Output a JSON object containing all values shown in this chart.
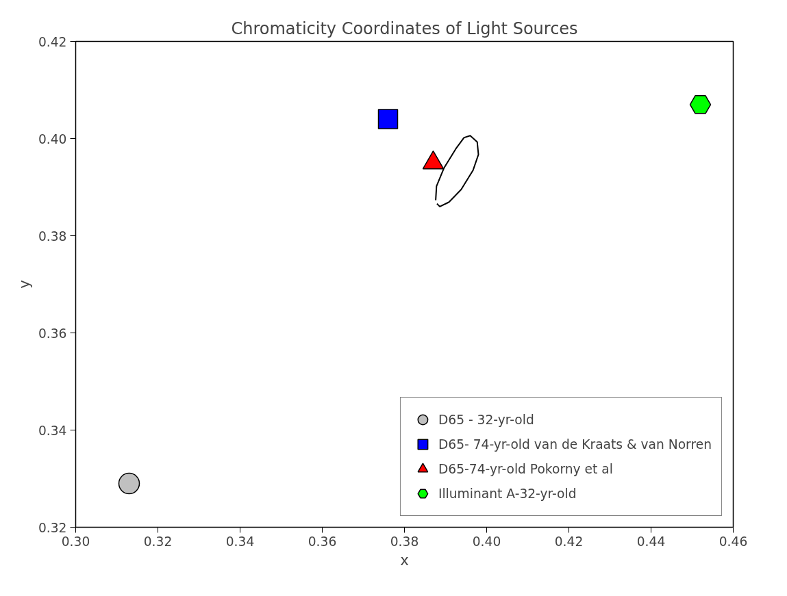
{
  "chart_data": {
    "type": "scatter",
    "title": "Chromaticity Coordinates of Light Sources",
    "xlabel": "x",
    "ylabel": "y",
    "xlim": [
      0.3,
      0.46
    ],
    "ylim": [
      0.32,
      0.42
    ],
    "xticks": [
      {
        "value": 0.3,
        "label": "0.30"
      },
      0.32,
      0.34,
      0.36,
      0.38,
      {
        "value": 0.4,
        "label": "0.40"
      },
      0.42,
      0.44,
      0.46
    ],
    "yticks": [
      0.32,
      0.34,
      0.36,
      0.38,
      {
        "value": 0.4,
        "label": "0.40"
      },
      0.42
    ],
    "grid": false,
    "legend": "bottom right",
    "series": [
      {
        "name": "D65 - 32-yr-old",
        "color": "#c0c0c0",
        "marker": "circle",
        "x": [
          0.313
        ],
        "values": [
          0.329
        ]
      },
      {
        "name": "D65- 74-yr-old van de Kraats & van Norren",
        "color": "#0000ff",
        "marker": "square",
        "x": [
          0.376
        ],
        "values": [
          0.404
        ]
      },
      {
        "name": "D65-74-yr-old Pokorny et al",
        "color": "#ff0000",
        "marker": "triangle",
        "x": [
          0.387
        ],
        "values": [
          0.395
        ]
      },
      {
        "name": "Illuminant A-32-yr-old",
        "color": "#00ff00",
        "x": [
          0.452
        ],
        "values": [
          0.407
        ]
      },
      {
        "type": "line",
        "color": "#000000",
        "marker": "none",
        "x": [
          0.3876,
          0.3878,
          0.3896,
          0.3925,
          0.3945,
          0.396,
          0.3977,
          0.398,
          0.3967,
          0.3938,
          0.3908,
          0.3886,
          0.3879
        ],
        "values": [
          0.3873,
          0.3902,
          0.3939,
          0.3979,
          0.4002,
          0.4006,
          0.3993,
          0.3967,
          0.3935,
          0.3895,
          0.3869,
          0.386,
          0.3866
        ]
      }
    ]
  }
}
